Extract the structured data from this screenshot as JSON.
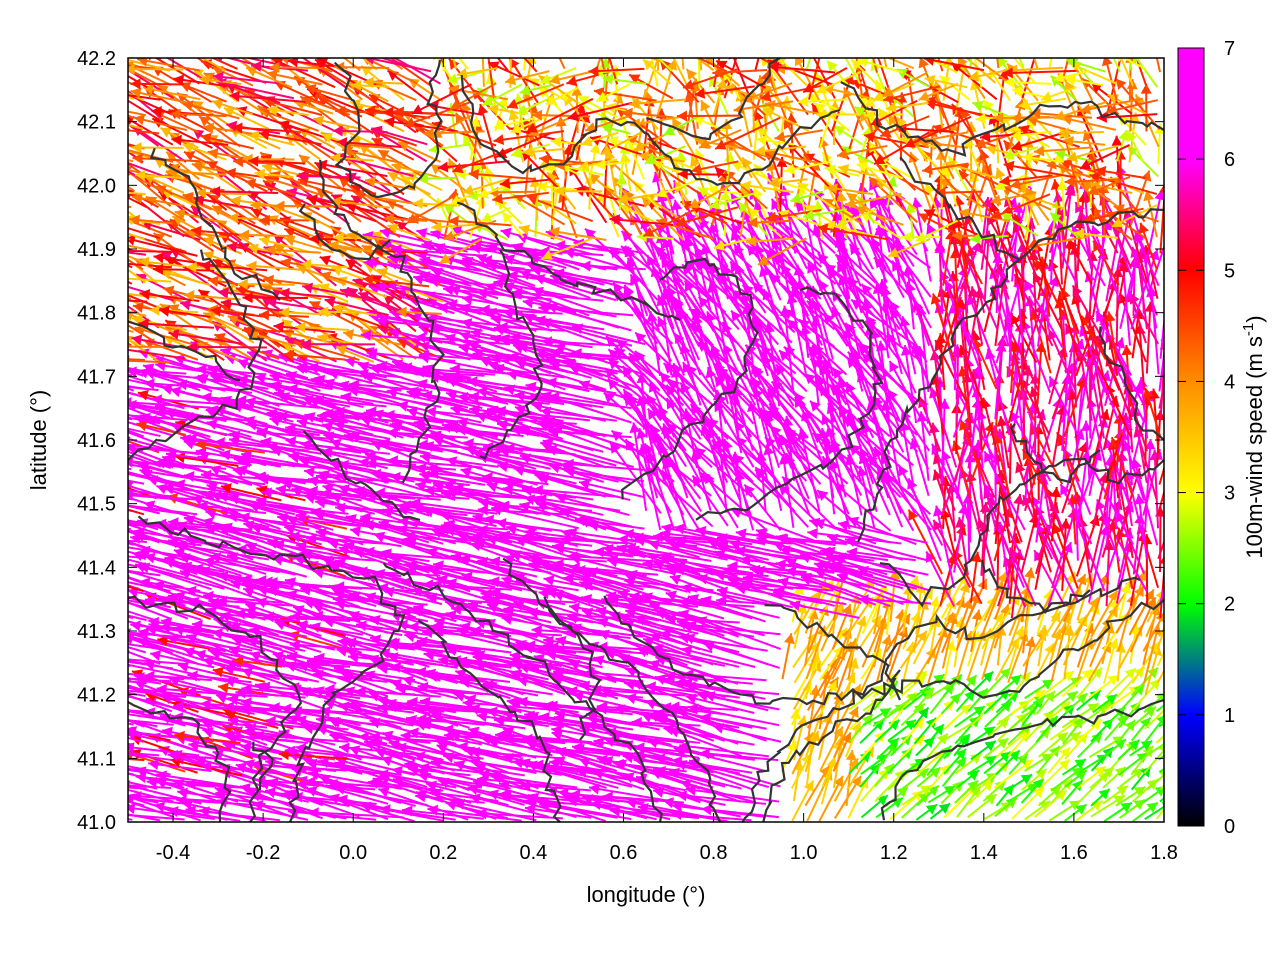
{
  "chart_data": {
    "type": "vector-field",
    "xlabel": "longitude (°)",
    "ylabel": "latitude (°)",
    "xlim": [
      -0.5,
      1.8
    ],
    "ylim": [
      41.0,
      42.2
    ],
    "x_ticks": [
      "-0.4",
      "-0.2",
      "0.0",
      "0.2",
      "0.4",
      "0.6",
      "0.8",
      "1.0",
      "1.2",
      "1.4",
      "1.6",
      "1.8"
    ],
    "y_ticks": [
      "41.0",
      "41.1",
      "41.2",
      "41.3",
      "41.4",
      "41.5",
      "41.6",
      "41.7",
      "41.8",
      "41.9",
      "42.0",
      "42.1",
      "42.2"
    ],
    "colorbar": {
      "label_main": "100m-wind speed (m s",
      "label_sup": "-1",
      "label_end": ")",
      "range": [
        0,
        7
      ],
      "ticks": [
        "0",
        "1",
        "2",
        "3",
        "4",
        "5",
        "6",
        "7"
      ],
      "palette": [
        "#000000",
        "#0000ff",
        "#00ff00",
        "#ffff00",
        "#ff8c00",
        "#ff0000",
        "#ff00ff"
      ]
    },
    "contours": "terrain elevation isolines (dark gray)",
    "wind_regions": [
      {
        "region": "west and centre",
        "direction": "from east-southeast",
        "speed": 7
      },
      {
        "region": "north strip",
        "direction": "variable",
        "speed": 4
      },
      {
        "region": "south-east corner",
        "direction": "from south-west",
        "speed": 2.5
      },
      {
        "region": "east",
        "direction": "from south",
        "speed": 6
      }
    ],
    "grid": false
  }
}
